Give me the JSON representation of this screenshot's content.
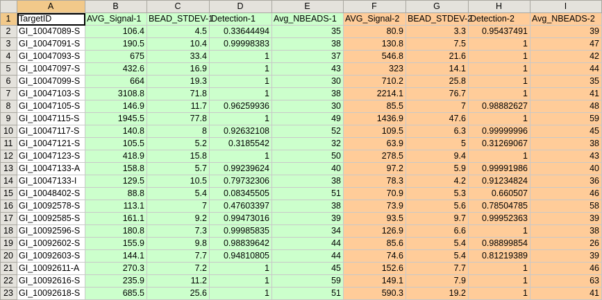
{
  "sheet": {
    "columns": [
      "A",
      "B",
      "C",
      "D",
      "E",
      "F",
      "G",
      "H",
      "I"
    ],
    "headers": [
      "TargetID",
      "AVG_Signal-1",
      "BEAD_STDEV-1",
      "Detection-1",
      "Avg_NBEADS-1",
      "AVG_Signal-2",
      "BEAD_STDEV-2",
      "Detection-2",
      "Avg_NBEADS-2"
    ],
    "row_numbers": [
      "1",
      "2",
      "3",
      "4",
      "5",
      "6",
      "7",
      "8",
      "9",
      "10",
      "11",
      "12",
      "13",
      "14",
      "15",
      "16",
      "17",
      "18",
      "19",
      "20",
      "21",
      "22",
      "23"
    ],
    "rows": [
      [
        "GI_10047089-S",
        "106.4",
        "4.5",
        "0.33644494",
        "35",
        "80.9",
        "3.3",
        "0.95437491",
        "39"
      ],
      [
        "GI_10047091-S",
        "190.5",
        "10.4",
        "0.99998383",
        "38",
        "130.8",
        "7.5",
        "1",
        "47"
      ],
      [
        "GI_10047093-S",
        "675",
        "33.4",
        "1",
        "37",
        "546.8",
        "21.6",
        "1",
        "42"
      ],
      [
        "GI_10047097-S",
        "432.6",
        "16.9",
        "1",
        "43",
        "323",
        "14.1",
        "1",
        "44"
      ],
      [
        "GI_10047099-S",
        "664",
        "19.3",
        "1",
        "30",
        "710.2",
        "25.8",
        "1",
        "35"
      ],
      [
        "GI_10047103-S",
        "3108.8",
        "71.8",
        "1",
        "38",
        "2214.1",
        "76.7",
        "1",
        "41"
      ],
      [
        "GI_10047105-S",
        "146.9",
        "11.7",
        "0.96259936",
        "30",
        "85.5",
        "7",
        "0.98882627",
        "48"
      ],
      [
        "GI_10047115-S",
        "1945.5",
        "77.8",
        "1",
        "49",
        "1436.9",
        "47.6",
        "1",
        "59"
      ],
      [
        "GI_10047117-S",
        "140.8",
        "8",
        "0.92632108",
        "52",
        "109.5",
        "6.3",
        "0.99999996",
        "45"
      ],
      [
        "GI_10047121-S",
        "105.5",
        "5.2",
        "0.3185542",
        "32",
        "63.9",
        "5",
        "0.31269067",
        "38"
      ],
      [
        "GI_10047123-S",
        "418.9",
        "15.8",
        "1",
        "50",
        "278.5",
        "9.4",
        "1",
        "43"
      ],
      [
        "GI_10047133-A",
        "158.8",
        "5.7",
        "0.99239624",
        "40",
        "97.2",
        "5.9",
        "0.99991986",
        "40"
      ],
      [
        "GI_10047133-I",
        "129.5",
        "10.5",
        "0.79732306",
        "38",
        "78.3",
        "4.2",
        "0.91234824",
        "36"
      ],
      [
        "GI_10048402-S",
        "88.8",
        "5.4",
        "0.08345505",
        "51",
        "70.9",
        "5.3",
        "0.660507",
        "46"
      ],
      [
        "GI_10092578-S",
        "113.1",
        "7",
        "0.47603397",
        "38",
        "73.9",
        "5.6",
        "0.78504785",
        "58"
      ],
      [
        "GI_10092585-S",
        "161.1",
        "9.2",
        "0.99473016",
        "39",
        "93.5",
        "9.7",
        "0.99952363",
        "39"
      ],
      [
        "GI_10092596-S",
        "180.8",
        "7.3",
        "0.99985835",
        "34",
        "126.9",
        "6.6",
        "1",
        "38"
      ],
      [
        "GI_10092602-S",
        "155.9",
        "9.8",
        "0.98839642",
        "44",
        "85.6",
        "5.4",
        "0.98899854",
        "26"
      ],
      [
        "GI_10092603-S",
        "144.1",
        "7.7",
        "0.94810805",
        "44",
        "74.6",
        "5.4",
        "0.81219389",
        "39"
      ],
      [
        "GI_10092611-A",
        "270.3",
        "7.2",
        "1",
        "45",
        "152.6",
        "7.7",
        "1",
        "46"
      ],
      [
        "GI_10092616-S",
        "235.9",
        "11.2",
        "1",
        "59",
        "149.1",
        "7.9",
        "1",
        "63"
      ],
      [
        "GI_10092618-S",
        "685.5",
        "25.6",
        "1",
        "51",
        "590.3",
        "19.2",
        "1",
        "41"
      ]
    ],
    "colors": {
      "group1_fill": "#ccffcc",
      "group2_fill": "#ffcc99",
      "header_bg": "#e4e2dc",
      "active_header_bg": "#f2c98a"
    }
  }
}
